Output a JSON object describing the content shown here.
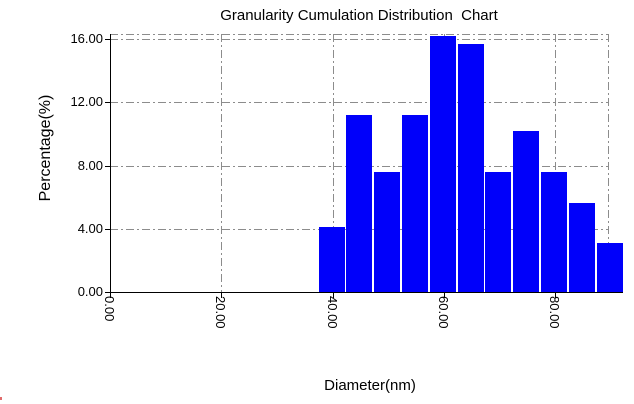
{
  "chart_data": {
    "type": "bar",
    "title": "Granularity Cumulation Distribution  Chart",
    "xlabel": "Diameter(nm)",
    "ylabel": "Percentage(%)",
    "categories": [
      40,
      45,
      50,
      55,
      60,
      65,
      70,
      75,
      80,
      85,
      90
    ],
    "values": [
      4.1,
      11.2,
      7.6,
      11.2,
      16.2,
      15.7,
      7.6,
      10.2,
      7.6,
      5.6,
      3.1
    ],
    "bin_width": 5,
    "xlim": [
      0,
      90
    ],
    "ylim": [
      0,
      16
    ],
    "x_ticks": [
      {
        "value": 0,
        "label": "0.00"
      },
      {
        "value": 20,
        "label": "20.00"
      },
      {
        "value": 40,
        "label": "40.00"
      },
      {
        "value": 60,
        "label": "60.00"
      },
      {
        "value": 80,
        "label": "80.00"
      }
    ],
    "y_ticks": [
      {
        "value": 0,
        "label": "0.00"
      },
      {
        "value": 4,
        "label": "4.00"
      },
      {
        "value": 8,
        "label": "8.00"
      },
      {
        "value": 12,
        "label": "12.00"
      },
      {
        "value": 16,
        "label": "16.00"
      }
    ],
    "grid": "dash-dot",
    "legend": "none",
    "bar_color": "#0000fa",
    "grid_color": "#8c8c8c",
    "axis_color": "#000000",
    "background_color": "#ffffff"
  },
  "artifact": {
    "description": "stray red pixel in bottom-left corner",
    "color": "#e06a6a"
  }
}
